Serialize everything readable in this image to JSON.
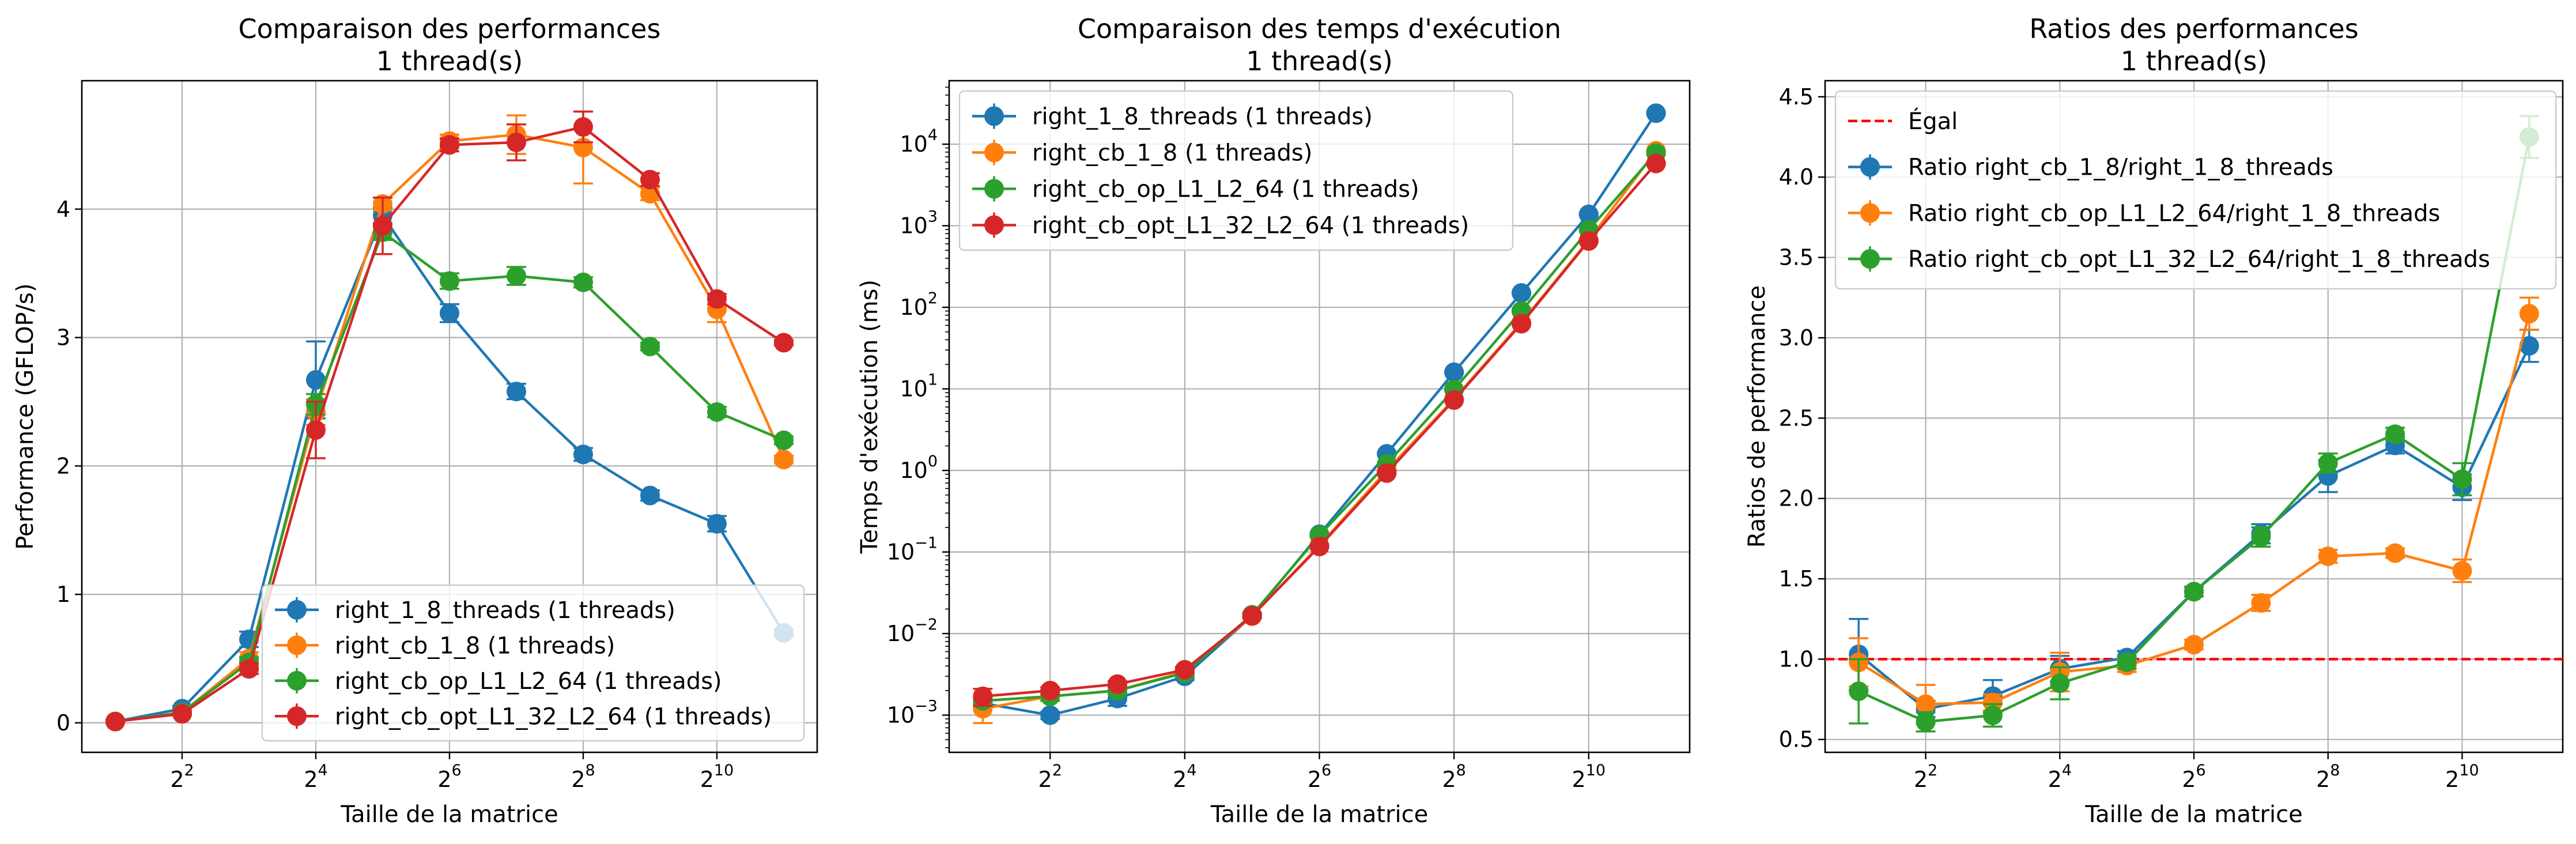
{
  "chart_data": [
    {
      "type": "line",
      "title": "Comparaison des performances",
      "subtitle": "1 thread(s)",
      "xlabel": "Taille de la matrice",
      "ylabel": "Performance (GFLOP/s)",
      "xscale": "log2",
      "x": [
        2,
        4,
        8,
        16,
        32,
        64,
        128,
        256,
        512,
        1024,
        2048
      ],
      "xticks": [
        4,
        16,
        64,
        256,
        1024
      ],
      "xtick_labels": [
        {
          "base": "2",
          "exp": "2"
        },
        {
          "base": "2",
          "exp": "4"
        },
        {
          "base": "2",
          "exp": "6"
        },
        {
          "base": "2",
          "exp": "8"
        },
        {
          "base": "2",
          "exp": "10"
        }
      ],
      "ylim": [
        -0.23,
        5.0
      ],
      "yscale": "linear",
      "yticks": [
        0,
        1,
        2,
        3,
        4
      ],
      "ytick_labels": [
        "0",
        "1",
        "2",
        "3",
        "4"
      ],
      "grid": true,
      "legend_position": "lower-right",
      "series": [
        {
          "name": "right_1_8_threads (1 threads)",
          "color": "#1f77b4",
          "values": [
            0.01,
            0.11,
            0.65,
            2.67,
            3.95,
            3.19,
            2.58,
            2.09,
            1.77,
            1.55,
            0.7
          ],
          "errors": [
            0.01,
            0.02,
            0.06,
            0.3,
            0.06,
            0.07,
            0.06,
            0.05,
            0.04,
            0.06,
            0.03
          ]
        },
        {
          "name": "right_cb_1_8 (1 threads)",
          "color": "#ff7f0e",
          "values": [
            0.01,
            0.08,
            0.5,
            2.42,
            4.04,
            4.53,
            4.58,
            4.48,
            4.12,
            3.22,
            2.05
          ],
          "errors": [
            0.01,
            0.01,
            0.05,
            0.1,
            0.05,
            0.05,
            0.15,
            0.28,
            0.05,
            0.1,
            0.03
          ]
        },
        {
          "name": "right_cb_op_L1_L2_64 (1 threads)",
          "color": "#2ca02c",
          "values": [
            0.01,
            0.08,
            0.47,
            2.48,
            3.82,
            3.44,
            3.48,
            3.43,
            2.93,
            2.42,
            2.2
          ],
          "errors": [
            0.01,
            0.01,
            0.04,
            0.08,
            0.06,
            0.06,
            0.07,
            0.04,
            0.03,
            0.04,
            0.03
          ]
        },
        {
          "name": "right_cb_opt_L1_32_L2_64 (1 threads)",
          "color": "#d62728",
          "values": [
            0.01,
            0.07,
            0.42,
            2.28,
            3.87,
            4.5,
            4.52,
            4.64,
            4.23,
            3.3,
            2.96
          ],
          "errors": [
            0.01,
            0.01,
            0.04,
            0.22,
            0.22,
            0.05,
            0.14,
            0.12,
            0.05,
            0.04,
            0.02
          ]
        }
      ]
    },
    {
      "type": "line",
      "title": "Comparaison des temps d'exécution",
      "subtitle": "1 thread(s)",
      "xlabel": "Taille de la matrice",
      "ylabel": "Temps d'exécution (ms)",
      "xscale": "log2",
      "x": [
        2,
        4,
        8,
        16,
        32,
        64,
        128,
        256,
        512,
        1024,
        2048
      ],
      "xticks": [
        4,
        16,
        64,
        256,
        1024
      ],
      "xtick_labels": [
        {
          "base": "2",
          "exp": "2"
        },
        {
          "base": "2",
          "exp": "4"
        },
        {
          "base": "2",
          "exp": "6"
        },
        {
          "base": "2",
          "exp": "8"
        },
        {
          "base": "2",
          "exp": "10"
        }
      ],
      "yscale": "log10",
      "ylim": [
        0.00035,
        60000
      ],
      "yticks": [
        0.001,
        0.01,
        0.1,
        1,
        10,
        100,
        1000,
        10000
      ],
      "ytick_labels": [
        {
          "base": "10",
          "exp": "−3"
        },
        {
          "base": "10",
          "exp": "−2"
        },
        {
          "base": "10",
          "exp": "−1"
        },
        {
          "base": "10",
          "exp": "0"
        },
        {
          "base": "10",
          "exp": "1"
        },
        {
          "base": "10",
          "exp": "2"
        },
        {
          "base": "10",
          "exp": "3"
        },
        {
          "base": "10",
          "exp": "4"
        }
      ],
      "grid": true,
      "legend_position": "upper-left",
      "series": [
        {
          "name": "right_1_8_threads (1 threads)",
          "color": "#1f77b4",
          "values": [
            0.0014,
            0.001,
            0.0016,
            0.003,
            0.0165,
            0.165,
            1.6,
            16,
            150,
            1380,
            24000
          ],
          "errors": [
            0.0002,
            0.0001,
            0.0003,
            0.0003,
            0.001,
            0.005,
            0.05,
            0.5,
            3,
            40,
            800
          ]
        },
        {
          "name": "right_cb_1_8 (1 threads)",
          "color": "#ff7f0e",
          "values": [
            0.0012,
            0.0017,
            0.002,
            0.0034,
            0.0164,
            0.12,
            1.0,
            7.5,
            65,
            665,
            8300
          ],
          "errors": [
            0.0004,
            0.0002,
            0.0002,
            0.0003,
            0.001,
            0.004,
            0.03,
            0.2,
            2,
            20,
            200
          ]
        },
        {
          "name": "right_cb_op_L1_L2_64 (1 threads)",
          "color": "#2ca02c",
          "values": [
            0.0015,
            0.0017,
            0.002,
            0.0033,
            0.017,
            0.16,
            1.2,
            9.8,
            90,
            890,
            7800
          ],
          "errors": [
            0.0002,
            0.0002,
            0.0002,
            0.0003,
            0.001,
            0.005,
            0.03,
            0.3,
            2,
            20,
            200
          ]
        },
        {
          "name": "right_cb_opt_L1_32_L2_64 (1 threads)",
          "color": "#d62728",
          "values": [
            0.0017,
            0.002,
            0.0024,
            0.0036,
            0.0165,
            0.117,
            0.93,
            7.3,
            63,
            650,
            5800
          ],
          "errors": [
            0.0004,
            0.0002,
            0.0002,
            0.0003,
            0.001,
            0.004,
            0.03,
            0.2,
            2,
            15,
            150
          ]
        }
      ]
    },
    {
      "type": "line",
      "title": "Ratios des performances",
      "subtitle": "1 thread(s)",
      "xlabel": "Taille de la matrice",
      "ylabel": "Ratios de performance",
      "xscale": "log2",
      "x": [
        2,
        4,
        8,
        16,
        32,
        64,
        128,
        256,
        512,
        1024,
        2048
      ],
      "xticks": [
        4,
        16,
        64,
        256,
        1024
      ],
      "xtick_labels": [
        {
          "base": "2",
          "exp": "2"
        },
        {
          "base": "2",
          "exp": "4"
        },
        {
          "base": "2",
          "exp": "6"
        },
        {
          "base": "2",
          "exp": "8"
        },
        {
          "base": "2",
          "exp": "10"
        }
      ],
      "yscale": "linear",
      "ylim": [
        0.42,
        4.6
      ],
      "yticks": [
        0.5,
        1.0,
        1.5,
        2.0,
        2.5,
        3.0,
        3.5,
        4.0,
        4.5
      ],
      "ytick_labels": [
        "0.5",
        "1.0",
        "1.5",
        "2.0",
        "2.5",
        "3.0",
        "3.5",
        "4.0",
        "4.5"
      ],
      "grid": true,
      "legend_position": "upper-left",
      "reference_line": {
        "name": "Égal",
        "value": 1.0,
        "color": "#ff0000"
      },
      "series": [
        {
          "name": "Ratio right_cb_1_8/right_1_8_threads",
          "color": "#1f77b4",
          "values": [
            1.03,
            0.69,
            0.77,
            0.94,
            1.01,
            1.42,
            1.78,
            2.14,
            2.33,
            2.07,
            2.95
          ],
          "errors": [
            0.22,
            0.05,
            0.1,
            0.08,
            0.04,
            0.03,
            0.06,
            0.1,
            0.05,
            0.08,
            0.1
          ]
        },
        {
          "name": "Ratio right_cb_op_L1_L2_64/right_1_8_threads",
          "color": "#ff7f0e",
          "values": [
            0.98,
            0.72,
            0.73,
            0.92,
            0.96,
            1.09,
            1.35,
            1.64,
            1.66,
            1.55,
            3.15
          ],
          "errors": [
            0.15,
            0.12,
            0.05,
            0.12,
            0.04,
            0.03,
            0.05,
            0.04,
            0.03,
            0.07,
            0.1
          ]
        },
        {
          "name": "Ratio right_cb_opt_L1_32_L2_64/right_1_8_threads",
          "color": "#2ca02c",
          "values": [
            0.8,
            0.61,
            0.65,
            0.85,
            0.98,
            1.42,
            1.76,
            2.22,
            2.4,
            2.12,
            4.25
          ],
          "errors": [
            0.2,
            0.06,
            0.07,
            0.1,
            0.04,
            0.03,
            0.06,
            0.06,
            0.04,
            0.1,
            0.13
          ]
        }
      ]
    }
  ]
}
